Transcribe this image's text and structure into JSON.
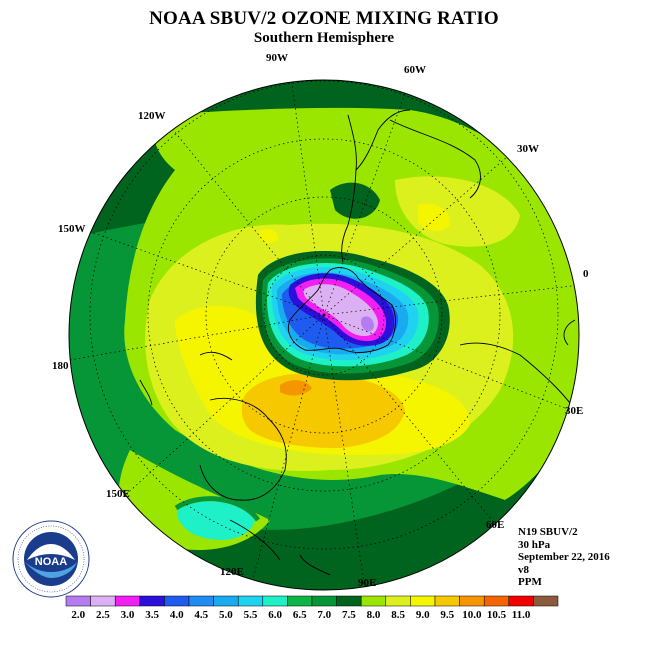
{
  "title": "NOAA SBUV/2 OZONE MIXING RATIO",
  "subtitle": "Southern Hemisphere",
  "longitude_labels": [
    {
      "text": "90W",
      "name": "lon-label-90w"
    },
    {
      "text": "60W",
      "name": "lon-label-60w"
    },
    {
      "text": "120W",
      "name": "lon-label-120w"
    },
    {
      "text": "30W",
      "name": "lon-label-30w"
    },
    {
      "text": "150W",
      "name": "lon-label-150w"
    },
    {
      "text": "0",
      "name": "lon-label-0"
    },
    {
      "text": "180",
      "name": "lon-label-180"
    },
    {
      "text": "30E",
      "name": "lon-label-30e"
    },
    {
      "text": "150E",
      "name": "lon-label-150e"
    },
    {
      "text": "60E",
      "name": "lon-label-60e"
    },
    {
      "text": "120E",
      "name": "lon-label-120e"
    },
    {
      "text": "90E",
      "name": "lon-label-90e"
    }
  ],
  "info": {
    "instrument": "N19 SBUV/2",
    "level": "30 hPa",
    "date": "September 22, 2016",
    "version": "v8",
    "units": "PPM"
  },
  "colorbar": {
    "ticks": [
      "2.0",
      "2.5",
      "3.0",
      "3.5",
      "4.0",
      "4.5",
      "5.0",
      "5.5",
      "6.0",
      "6.5",
      "7.0",
      "7.5",
      "8.0",
      "8.5",
      "9.0",
      "9.5",
      "10.0",
      "10.5",
      "11.0"
    ],
    "colors": [
      "#b57cf2",
      "#dcb1f4",
      "#f21ef2",
      "#2a10d8",
      "#1e5cf0",
      "#1e8cf0",
      "#19aaf0",
      "#1ed2f0",
      "#1ef0c8",
      "#10b447",
      "#079637",
      "#00641e",
      "#9be600",
      "#dcf01e",
      "#f5f500",
      "#f5c800",
      "#f59600",
      "#f56400",
      "#f00000",
      "#8c5a3c"
    ]
  },
  "logo": {
    "text": "NOAA"
  }
}
